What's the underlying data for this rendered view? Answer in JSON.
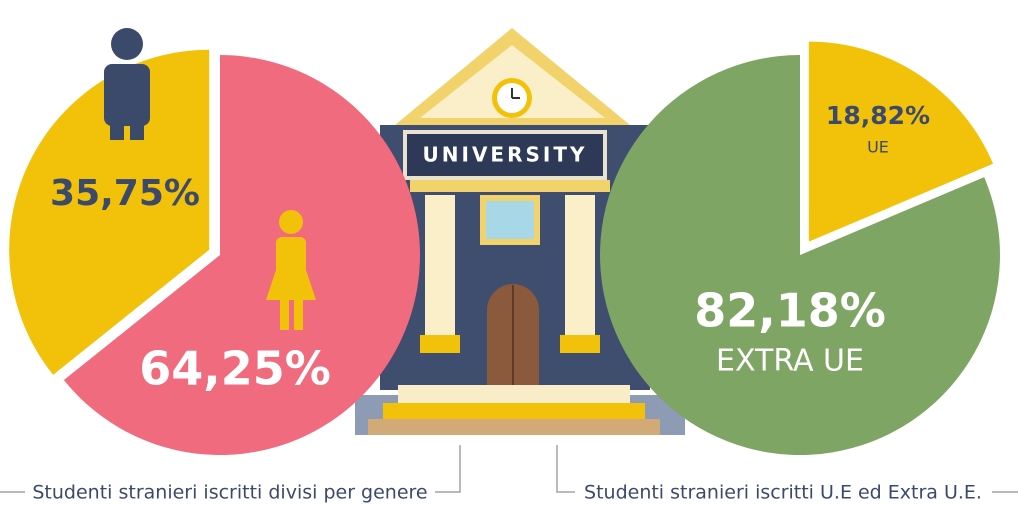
{
  "chart_data": [
    {
      "type": "pie",
      "caption": "Studenti stranieri iscritti divisi per genere",
      "values": [
        35.75,
        64.25
      ],
      "value_labels": [
        "35,75%",
        "64,25%"
      ],
      "colors": [
        "#f2c10a",
        "#f06b7d"
      ]
    },
    {
      "type": "pie",
      "caption": "Studenti stranieri iscritti U.E ed Extra U.E.",
      "categories": [
        "UE",
        "EXTRA UE"
      ],
      "values": [
        18.82,
        82.18
      ],
      "value_labels": [
        "18,82%",
        "82,18%"
      ],
      "colors": [
        "#f2c10a",
        "#7fa564"
      ]
    }
  ],
  "illustration": {
    "sign": "UNIVERSITY"
  }
}
